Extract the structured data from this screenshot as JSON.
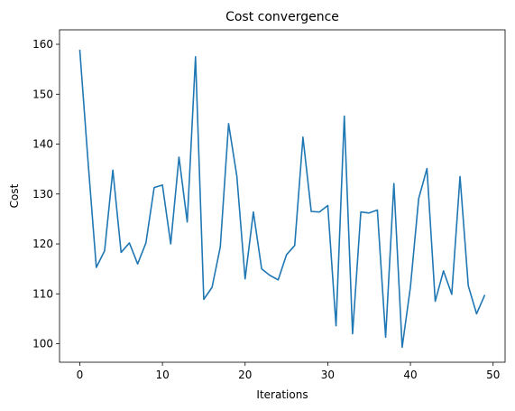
{
  "chart_data": {
    "type": "line",
    "title": "Cost convergence",
    "xlabel": "Iterations",
    "ylabel": "Cost",
    "xlim": [
      -2.45,
      51.45
    ],
    "ylim": [
      96.3,
      162.9
    ],
    "xticks": [
      0,
      10,
      20,
      30,
      40,
      50
    ],
    "yticks": [
      100,
      110,
      120,
      130,
      140,
      150,
      160
    ],
    "grid": false,
    "series": [
      {
        "color": "#1f77b4",
        "x": [
          0,
          1,
          2,
          3,
          4,
          5,
          6,
          7,
          8,
          9,
          10,
          11,
          12,
          13,
          14,
          15,
          16,
          17,
          18,
          19,
          20,
          21,
          22,
          23,
          24,
          25,
          26,
          27,
          28,
          29,
          30,
          31,
          32,
          33,
          34,
          35,
          36,
          37,
          38,
          39,
          40,
          41,
          42,
          43,
          44,
          45,
          46,
          47,
          48,
          49
        ],
        "y": [
          158.9,
          136.5,
          115.3,
          118.6,
          134.8,
          118.3,
          120.2,
          116.0,
          120.2,
          131.3,
          131.8,
          120.0,
          137.4,
          124.4,
          157.5,
          108.9,
          111.3,
          119.4,
          144.1,
          133.6,
          113.0,
          126.4,
          115.0,
          113.7,
          112.8,
          117.8,
          119.7,
          141.4,
          126.5,
          126.4,
          127.7,
          103.6,
          145.6,
          102.0,
          126.4,
          126.2,
          126.8,
          101.3,
          132.1,
          99.3,
          111.4,
          129.1,
          135.1,
          108.5,
          114.6,
          109.9,
          133.5,
          111.6,
          106.0,
          109.8
        ]
      }
    ]
  }
}
